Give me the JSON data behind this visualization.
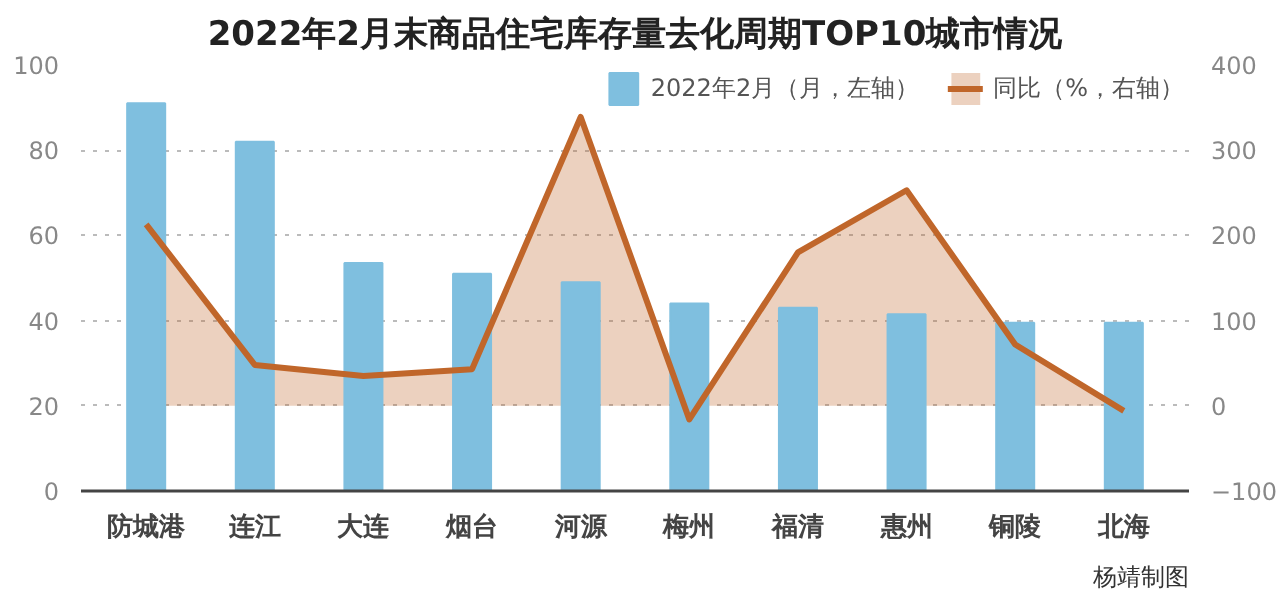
{
  "chart_data": {
    "type": "bar",
    "title": "2022年2月末商品住宅库存量去化周期TOP10城市情况",
    "categories": [
      "防城港",
      "连江",
      "大连",
      "烟台",
      "河源",
      "梅州",
      "福清",
      "惠州",
      "铜陵",
      "北海"
    ],
    "series": [
      {
        "name": "2022年2月（月，左轴）",
        "type": "bar",
        "color": "#7fbfdf",
        "values": [
          91,
          82,
          53.5,
          51,
          49,
          44,
          43,
          41.5,
          39.5,
          39.5
        ]
      },
      {
        "name": "同比（%，右轴）",
        "type": "area",
        "axis": "y2",
        "color": "#c0662a",
        "values": [
          213,
          48,
          35,
          43,
          339,
          -16,
          180,
          253,
          72,
          -6
        ]
      }
    ],
    "ylim": [
      0,
      100
    ],
    "yticks": [
      0,
      20,
      40,
      60,
      80,
      100
    ],
    "y2lim": [
      -100,
      400
    ],
    "y2ticks": [
      -100,
      0,
      100,
      200,
      300,
      400
    ],
    "grid": "y",
    "legend": "top right",
    "annotations": [
      "杨靖制图"
    ]
  }
}
